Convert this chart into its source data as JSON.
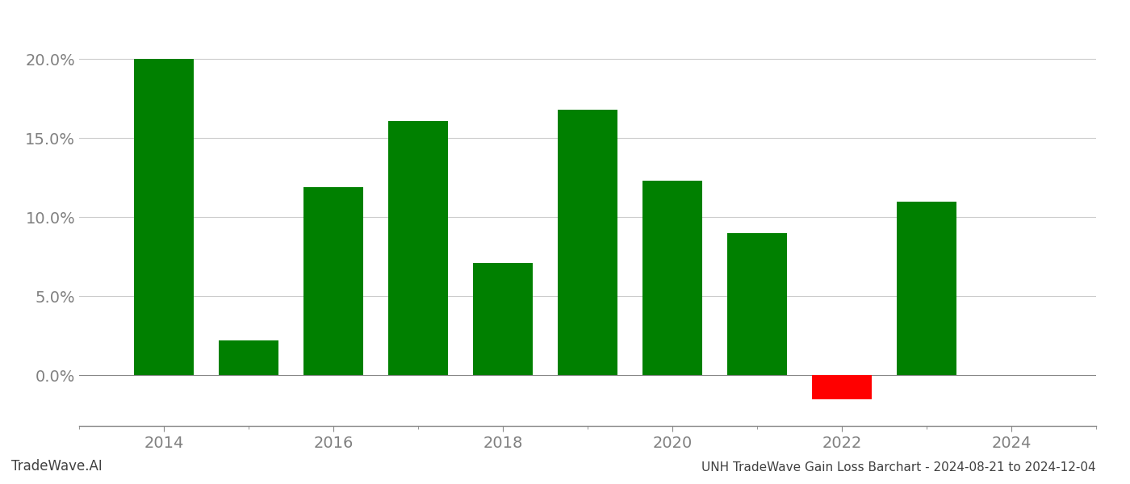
{
  "years": [
    2014,
    2015,
    2016,
    2017,
    2018,
    2019,
    2020,
    2021,
    2022,
    2023
  ],
  "values": [
    0.2,
    0.022,
    0.119,
    0.161,
    0.071,
    0.168,
    0.123,
    0.09,
    -0.015,
    0.11
  ],
  "colors": [
    "#008000",
    "#008000",
    "#008000",
    "#008000",
    "#008000",
    "#008000",
    "#008000",
    "#008000",
    "#ff0000",
    "#008000"
  ],
  "title": "UNH TradeWave Gain Loss Barchart - 2024-08-21 to 2024-12-04",
  "watermark": "TradeWave.AI",
  "ylim_min": -0.032,
  "ylim_max": 0.225,
  "yticks": [
    0.0,
    0.05,
    0.1,
    0.15,
    0.2
  ],
  "ytick_labels": [
    "0.0%",
    "5.0%",
    "10.0%",
    "15.0%",
    "20.0%"
  ],
  "xticks_major": [
    2014,
    2016,
    2018,
    2020,
    2022,
    2024
  ],
  "xticks_minor": [
    2013,
    2014,
    2015,
    2016,
    2017,
    2018,
    2019,
    2020,
    2021,
    2022,
    2023,
    2024,
    2025
  ],
  "xlim_min": 2013.2,
  "xlim_max": 2024.8,
  "background_color": "#ffffff",
  "bar_width": 0.7,
  "grid_color": "#cccccc",
  "axis_label_color": "#808080",
  "title_color": "#404040",
  "watermark_color": "#404040",
  "tick_fontsize": 14,
  "title_fontsize": 11,
  "watermark_fontsize": 12
}
